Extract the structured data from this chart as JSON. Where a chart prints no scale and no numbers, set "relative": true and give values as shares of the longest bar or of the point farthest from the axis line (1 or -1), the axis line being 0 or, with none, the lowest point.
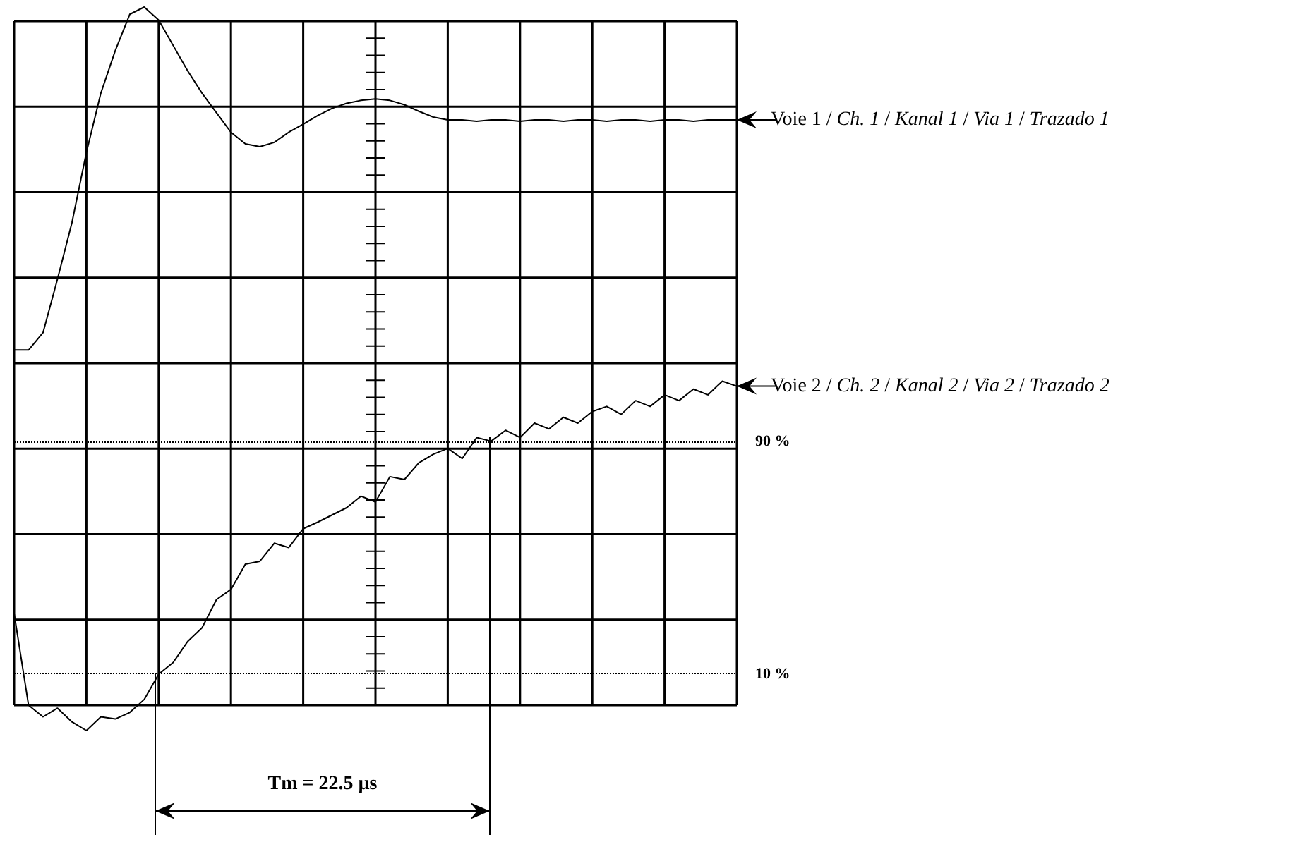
{
  "chart_data": {
    "type": "line",
    "relative": true,
    "grid": true,
    "categories": [
      null,
      null,
      null,
      null,
      null,
      null,
      null,
      null,
      null,
      null,
      null,
      null,
      null,
      null,
      null,
      null,
      null,
      null,
      null,
      null,
      null,
      null,
      null,
      null,
      null,
      null,
      null,
      null,
      null,
      null,
      null,
      null,
      null,
      null,
      null,
      null,
      null,
      null,
      null,
      null,
      null,
      null,
      null,
      null,
      null,
      null,
      null,
      null,
      null,
      null,
      null
    ],
    "series": [
      {
        "name": "Voie 1 / Ch. 1 / Kanal 1 / Via 1 / Trazado 1",
        "color": "#000000",
        "values": [
          0.526,
          0.526,
          0.55,
          0.624,
          0.702,
          0.799,
          0.881,
          0.94,
          0.99,
          1.0,
          0.982,
          0.947,
          0.912,
          0.881,
          0.854,
          0.827,
          0.811,
          0.807,
          0.813,
          0.827,
          0.838,
          0.85,
          0.86,
          0.867,
          0.871,
          0.873,
          0.871,
          0.865,
          0.856,
          0.848,
          0.844,
          0.844,
          0.842,
          0.844,
          0.844,
          0.842,
          0.844,
          0.844,
          0.842,
          0.844,
          0.844,
          0.842,
          0.844,
          0.844,
          0.842,
          0.844,
          0.844,
          0.842,
          0.844,
          0.844,
          0.844
        ]
      },
      {
        "name": "Voie 2 / Ch. 2 / Kanal 2 / Via 2 / Trazado 2",
        "color": "#000000",
        "values": [
          0.162,
          0.035,
          0.019,
          0.031,
          0.012,
          0.0,
          0.019,
          0.016,
          0.025,
          0.043,
          0.078,
          0.094,
          0.123,
          0.142,
          0.181,
          0.195,
          0.23,
          0.234,
          0.259,
          0.253,
          0.279,
          0.288,
          0.298,
          0.308,
          0.324,
          0.316,
          0.351,
          0.347,
          0.37,
          0.382,
          0.39,
          0.376,
          0.405,
          0.4,
          0.415,
          0.405,
          0.425,
          0.417,
          0.433,
          0.425,
          0.441,
          0.448,
          0.437,
          0.456,
          0.448,
          0.464,
          0.456,
          0.472,
          0.464,
          0.483,
          0.476
        ]
      }
    ],
    "ref_lines": [
      {
        "axis": "y",
        "value": 0.4,
        "color": "#000000",
        "line_style": "dotted"
      },
      {
        "axis": "y",
        "value": 0.078,
        "color": "#000000",
        "line_style": "dotted"
      }
    ],
    "annotations": [
      "Tm = 22.5 µs",
      "90 %",
      "10 %"
    ]
  }
}
